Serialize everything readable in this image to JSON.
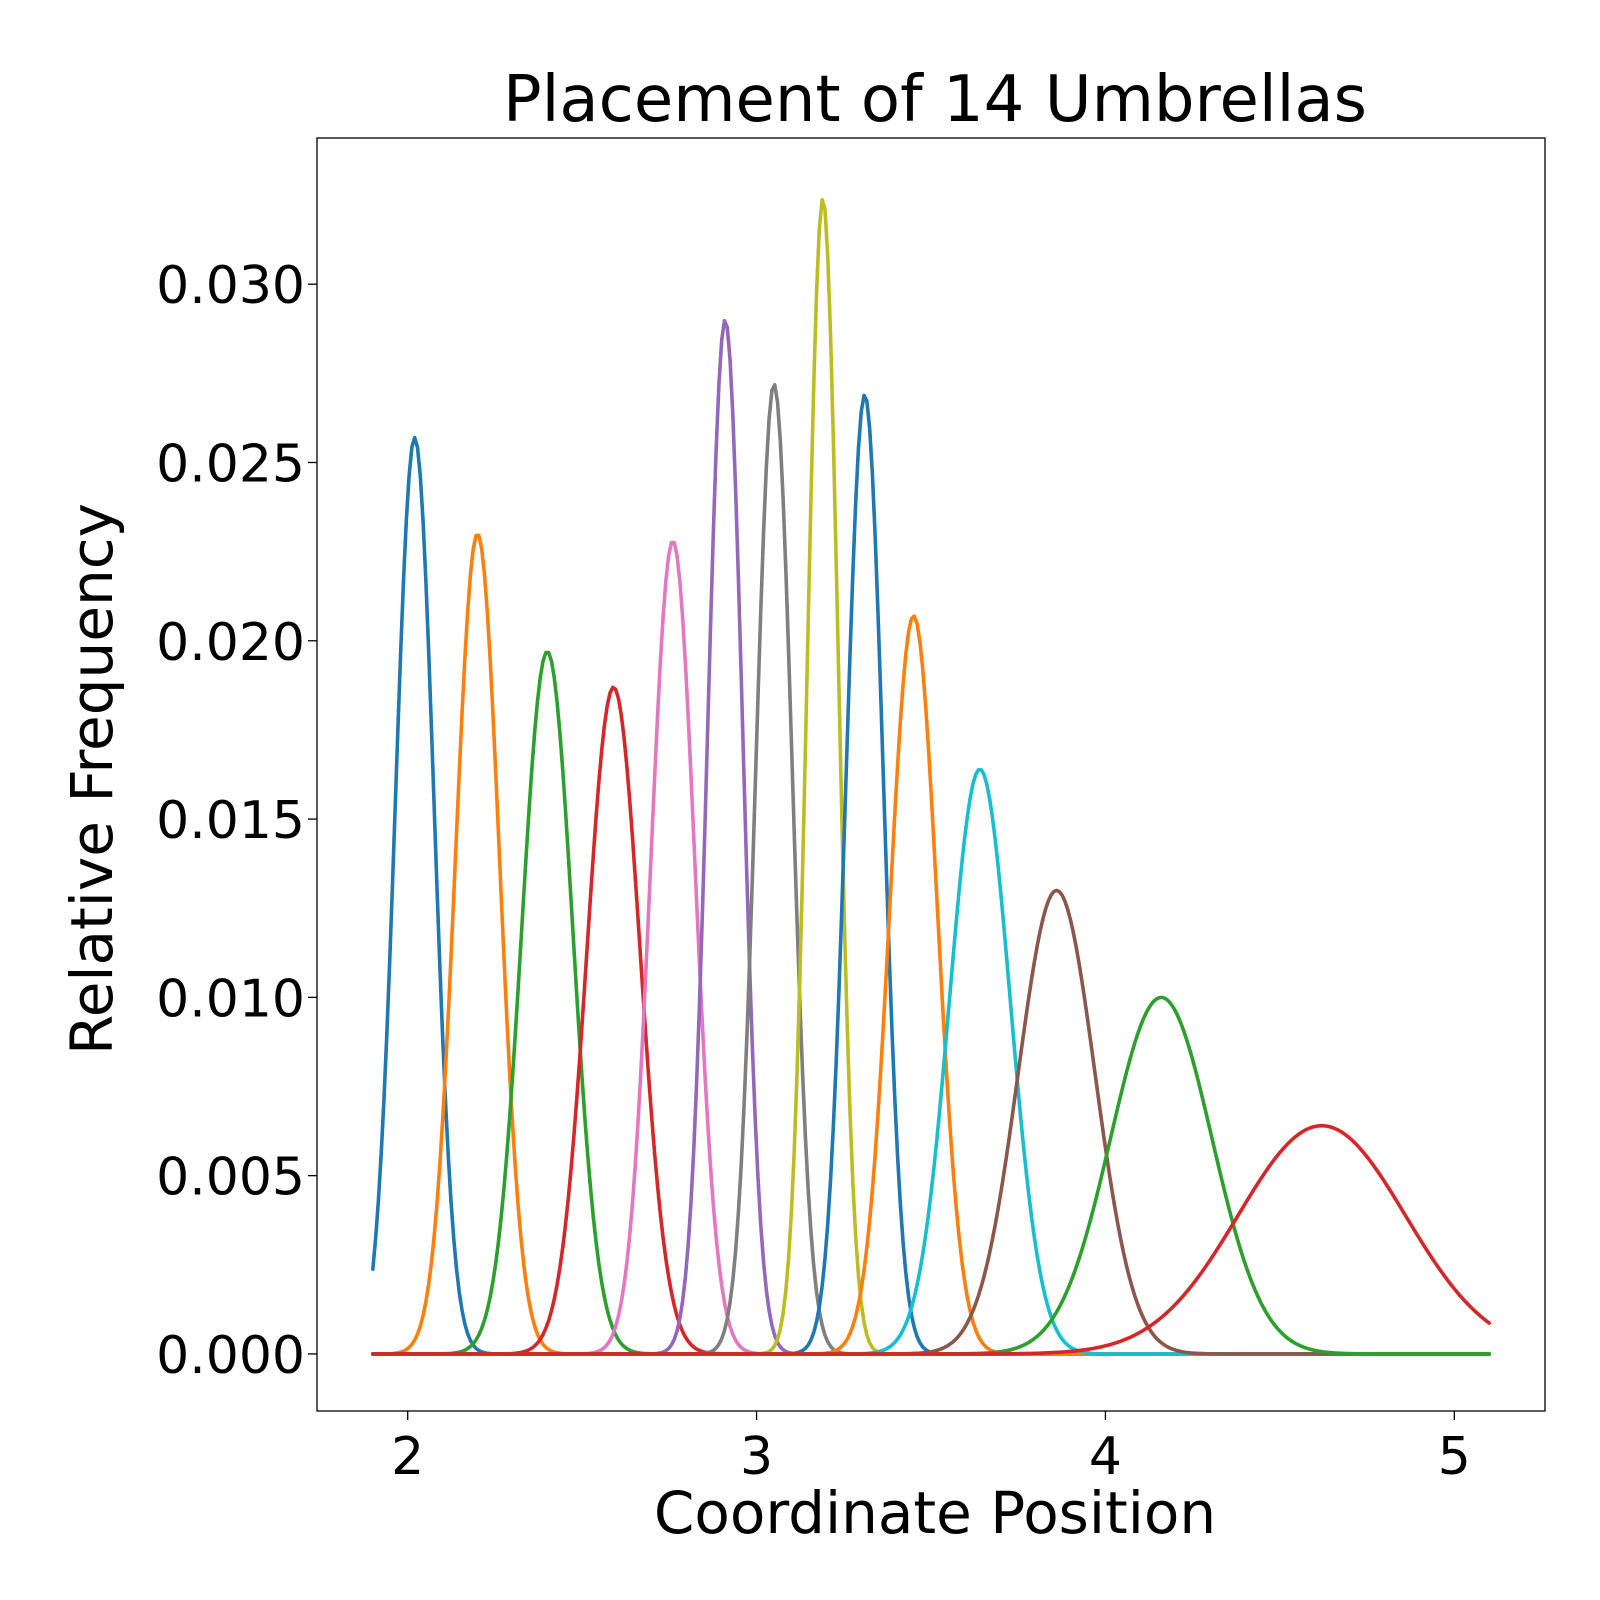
{
  "chart_data": {
    "type": "line",
    "title": "Placement of 14 Umbrellas",
    "xlabel": "Coordinate Position",
    "ylabel": "Relative Frequency",
    "xlim": [
      1.74,
      5.26
    ],
    "ylim": [
      -0.0016,
      0.0341
    ],
    "x_range": [
      1.9,
      5.1
    ],
    "xticks": [
      2,
      3,
      4,
      5
    ],
    "xtick_labels": [
      "2",
      "3",
      "4",
      "5"
    ],
    "yticks": [
      0.0,
      0.005,
      0.01,
      0.015,
      0.02,
      0.025,
      0.03
    ],
    "ytick_labels": [
      "0.000",
      "0.005",
      "0.010",
      "0.015",
      "0.020",
      "0.025",
      "0.030"
    ],
    "grid": false,
    "legend": false,
    "series": [
      {
        "color": "#1f77b4",
        "peak_x": 2.02,
        "peak_y": 0.0257,
        "sd": 0.055
      },
      {
        "color": "#ff7f0e",
        "peak_x": 2.2,
        "peak_y": 0.023,
        "sd": 0.063
      },
      {
        "color": "#2ca02c",
        "peak_x": 2.4,
        "peak_y": 0.0197,
        "sd": 0.073
      },
      {
        "color": "#d62728",
        "peak_x": 2.59,
        "peak_y": 0.0187,
        "sd": 0.076
      },
      {
        "color": "#e377c2",
        "peak_x": 2.76,
        "peak_y": 0.0228,
        "sd": 0.063
      },
      {
        "color": "#9467bd",
        "peak_x": 2.91,
        "peak_y": 0.029,
        "sd": 0.05
      },
      {
        "color": "#7f7f7f",
        "peak_x": 3.05,
        "peak_y": 0.0272,
        "sd": 0.052
      },
      {
        "color": "#bcbd22",
        "peak_x": 3.19,
        "peak_y": 0.0324,
        "sd": 0.044
      },
      {
        "color": "#1f77b4",
        "peak_x": 3.31,
        "peak_y": 0.0269,
        "sd": 0.053
      },
      {
        "color": "#ff7f0e",
        "peak_x": 3.45,
        "peak_y": 0.0207,
        "sd": 0.068
      },
      {
        "color": "#17becf",
        "peak_x": 3.64,
        "peak_y": 0.0164,
        "sd": 0.087
      },
      {
        "color": "#8c564b",
        "peak_x": 3.86,
        "peak_y": 0.013,
        "sd": 0.11
      },
      {
        "color": "#2ca02c",
        "peak_x": 4.16,
        "peak_y": 0.01,
        "sd": 0.145
      },
      {
        "color": "#d62728",
        "peak_x": 4.62,
        "peak_y": 0.0064,
        "sd": 0.24
      }
    ]
  }
}
